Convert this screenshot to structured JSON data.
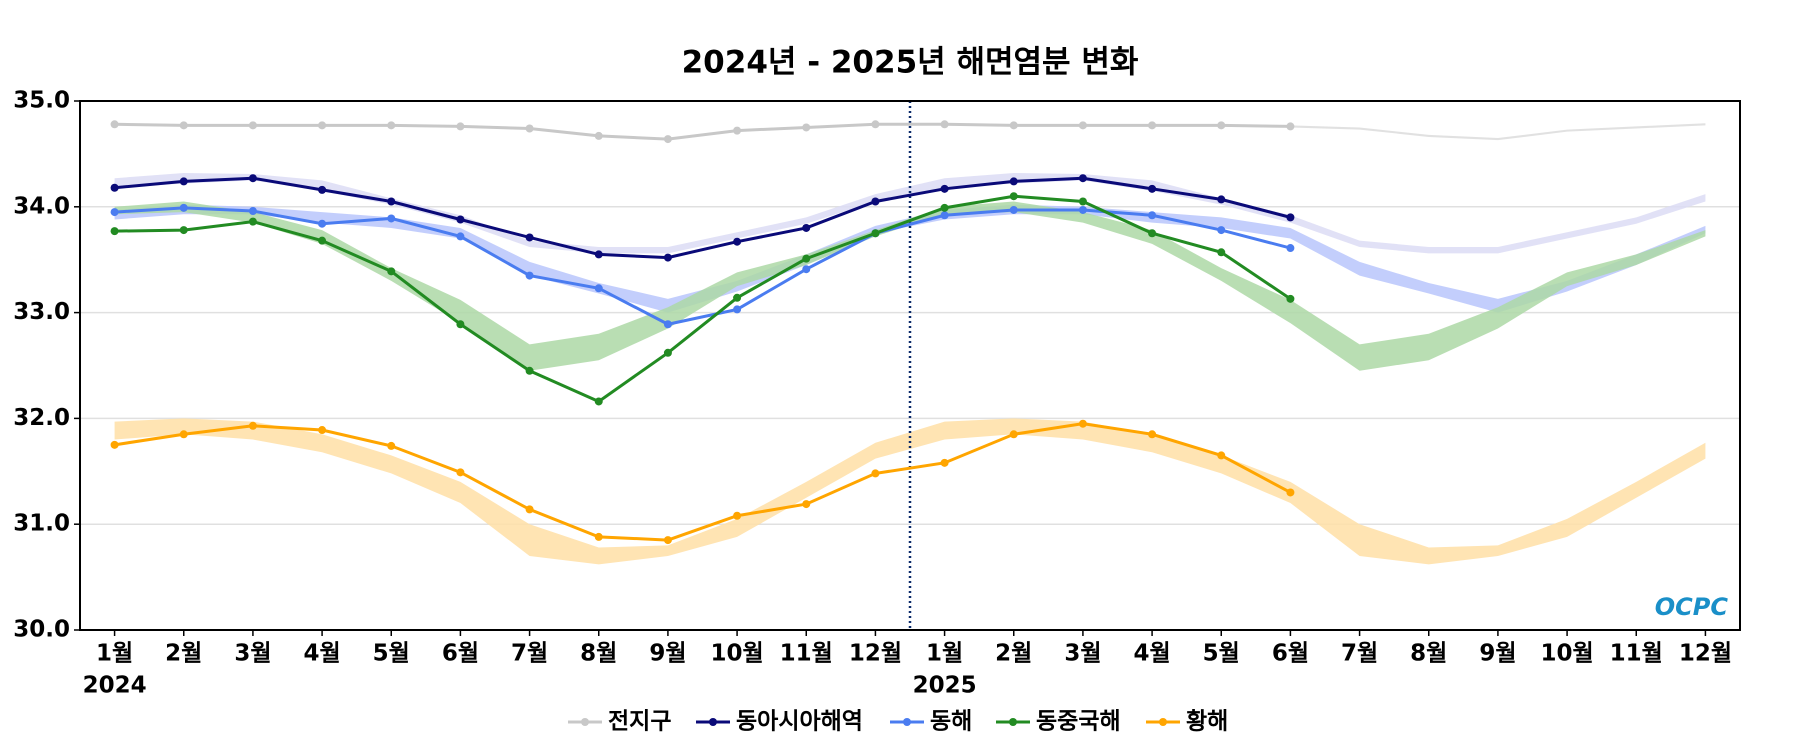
{
  "chart_data": {
    "type": "line",
    "title": "2024년 - 2025년 해면염분 변화",
    "categories": [
      "1월",
      "2월",
      "3월",
      "4월",
      "5월",
      "6월",
      "7월",
      "8월",
      "9월",
      "10월",
      "11월",
      "12월",
      "1월",
      "2월",
      "3월",
      "4월",
      "5월",
      "6월",
      "7월",
      "8월",
      "9월",
      "10월",
      "11월",
      "12월"
    ],
    "year_labels": [
      {
        "index": 0,
        "label": "2024"
      },
      {
        "index": 12,
        "label": "2025"
      }
    ],
    "divider": 11.5,
    "logo": "OCPC",
    "ylim": [
      30,
      35
    ],
    "yticks": [
      {
        "value": 30,
        "label": "30.0"
      },
      {
        "value": 31,
        "label": "31.0"
      },
      {
        "value": 32,
        "label": "32.0"
      },
      {
        "value": 33,
        "label": "33.0"
      },
      {
        "value": 34,
        "label": "34.0"
      },
      {
        "value": 35,
        "label": "35.0"
      }
    ],
    "grid": true,
    "legend": "bottom",
    "series": [
      {
        "name": "전지구",
        "color": "#c8c8c8",
        "band_color": "#dcdcdc",
        "values": [
          34.78,
          34.77,
          34.77,
          34.77,
          34.77,
          34.76,
          34.74,
          34.67,
          34.64,
          34.72,
          34.75,
          34.78,
          34.78,
          34.77,
          34.77,
          34.77,
          34.77,
          34.76,
          null,
          null,
          null,
          null,
          null,
          null
        ],
        "band_low": [
          34.77,
          34.76,
          34.76,
          34.76,
          34.76,
          34.75,
          34.73,
          34.66,
          34.63,
          34.71,
          34.74,
          34.77,
          34.77,
          34.76,
          34.76,
          34.76,
          34.76,
          34.75,
          34.73,
          34.66,
          34.63,
          34.71,
          34.74,
          34.77
        ],
        "band_high": [
          34.79,
          34.78,
          34.78,
          34.78,
          34.78,
          34.77,
          34.75,
          34.68,
          34.65,
          34.73,
          34.76,
          34.79,
          34.79,
          34.78,
          34.78,
          34.78,
          34.78,
          34.77,
          34.75,
          34.68,
          34.65,
          34.73,
          34.76,
          34.79
        ]
      },
      {
        "name": "동아시아해역",
        "color": "#0a0a78",
        "band_color": "#dcdcf5",
        "values": [
          34.18,
          34.24,
          34.27,
          34.16,
          34.05,
          33.88,
          33.71,
          33.55,
          33.52,
          33.67,
          33.8,
          34.05,
          34.17,
          34.24,
          34.27,
          34.17,
          34.07,
          33.9,
          null,
          null,
          null,
          null,
          null,
          null
        ],
        "band_low": [
          34.18,
          34.22,
          34.25,
          34.15,
          34.02,
          33.85,
          33.62,
          33.56,
          33.56,
          33.7,
          33.84,
          34.05,
          34.18,
          34.22,
          34.25,
          34.15,
          34.02,
          33.85,
          33.62,
          33.56,
          33.56,
          33.7,
          33.84,
          34.05
        ],
        "band_high": [
          34.27,
          34.32,
          34.31,
          34.25,
          34.08,
          33.92,
          33.68,
          33.62,
          33.62,
          33.76,
          33.9,
          34.12,
          34.27,
          34.32,
          34.31,
          34.25,
          34.08,
          33.92,
          33.68,
          33.62,
          33.62,
          33.76,
          33.9,
          34.12
        ]
      },
      {
        "name": "동해",
        "color": "#4a7cf0",
        "band_color": "#b9c6fb",
        "values": [
          33.95,
          33.99,
          33.96,
          33.84,
          33.89,
          33.72,
          33.35,
          33.23,
          32.89,
          33.03,
          33.41,
          33.75,
          33.92,
          33.97,
          33.97,
          33.92,
          33.78,
          33.61,
          null,
          null,
          null,
          null,
          null,
          null
        ],
        "band_low": [
          33.88,
          33.93,
          33.93,
          33.85,
          33.8,
          33.7,
          33.35,
          33.18,
          33.0,
          33.2,
          33.45,
          33.75,
          33.88,
          33.93,
          33.93,
          33.85,
          33.8,
          33.7,
          33.35,
          33.18,
          33.0,
          33.2,
          33.45,
          33.75
        ],
        "band_high": [
          33.97,
          34.02,
          34.0,
          33.95,
          33.9,
          33.8,
          33.48,
          33.28,
          33.13,
          33.3,
          33.55,
          33.82,
          33.97,
          34.02,
          34.0,
          33.95,
          33.9,
          33.8,
          33.48,
          33.28,
          33.13,
          33.3,
          33.55,
          33.82
        ]
      },
      {
        "name": "동중국해",
        "color": "#228b22",
        "band_color": "#add8a6",
        "values": [
          33.77,
          33.78,
          33.86,
          33.68,
          33.39,
          32.89,
          32.45,
          32.16,
          32.62,
          33.14,
          33.51,
          33.75,
          33.99,
          34.1,
          34.05,
          33.75,
          33.57,
          33.13,
          null,
          null,
          null,
          null,
          null,
          null
        ],
        "band_low": [
          33.93,
          33.95,
          33.85,
          33.65,
          33.3,
          32.9,
          32.45,
          32.55,
          32.85,
          33.25,
          33.45,
          33.72,
          33.93,
          33.95,
          33.85,
          33.65,
          33.3,
          32.9,
          32.45,
          32.55,
          32.85,
          33.25,
          33.45,
          33.72
        ],
        "band_high": [
          34.0,
          34.05,
          33.95,
          33.78,
          33.42,
          33.12,
          32.7,
          32.8,
          33.05,
          33.38,
          33.55,
          33.78,
          34.0,
          34.05,
          33.95,
          33.78,
          33.42,
          33.12,
          32.7,
          32.8,
          33.05,
          33.38,
          33.55,
          33.78
        ]
      },
      {
        "name": "황해",
        "color": "#ffa500",
        "band_color": "#ffdfa6",
        "values": [
          31.75,
          31.85,
          31.93,
          31.89,
          31.74,
          31.49,
          31.14,
          30.88,
          30.85,
          31.08,
          31.19,
          31.48,
          31.58,
          31.85,
          31.95,
          31.85,
          31.65,
          31.3,
          null,
          null,
          null,
          null,
          null,
          null
        ],
        "band_low": [
          31.8,
          31.85,
          31.8,
          31.68,
          31.48,
          31.2,
          30.7,
          30.62,
          30.7,
          30.88,
          31.25,
          31.62,
          31.8,
          31.85,
          31.8,
          31.68,
          31.48,
          31.2,
          30.7,
          30.62,
          30.7,
          30.88,
          31.25,
          31.62
        ],
        "band_high": [
          31.97,
          32.0,
          31.97,
          31.85,
          31.65,
          31.4,
          31.0,
          30.78,
          30.8,
          31.05,
          31.4,
          31.77,
          31.97,
          32.0,
          31.97,
          31.85,
          31.65,
          31.4,
          31.0,
          30.78,
          30.8,
          31.05,
          31.4,
          31.77
        ]
      }
    ]
  }
}
